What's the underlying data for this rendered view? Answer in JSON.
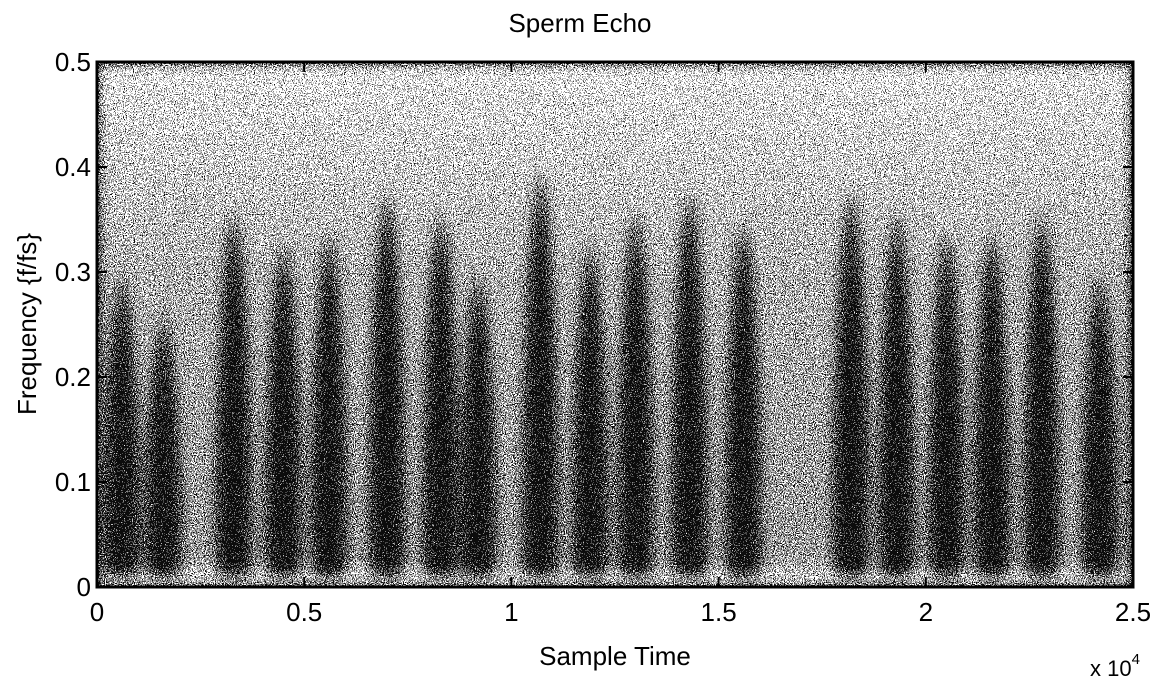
{
  "chart_data": {
    "type": "spectrogram",
    "title": "Sperm Echo",
    "x_label": "Sample Time",
    "y_label": "Frequency {f/fs}",
    "x_multiplier": {
      "base": "x 10",
      "exponent": "4"
    },
    "xlim": [
      0,
      2.5
    ],
    "xticks": [
      0,
      0.5,
      1,
      1.5,
      2,
      2.5
    ],
    "ylim": [
      0,
      0.5
    ],
    "yticks": [
      0,
      0.1,
      0.2,
      0.3,
      0.4,
      0.5
    ],
    "x": [
      0.06,
      0.16,
      0.33,
      0.45,
      0.56,
      0.7,
      0.83,
      0.92,
      1.07,
      1.19,
      1.3,
      1.43,
      1.56,
      1.82,
      1.93,
      2.05,
      2.16,
      2.28,
      2.42
    ],
    "values": [
      0.3,
      0.26,
      0.36,
      0.33,
      0.34,
      0.38,
      0.36,
      0.3,
      0.4,
      0.33,
      0.36,
      0.38,
      0.35,
      0.38,
      0.36,
      0.34,
      0.34,
      0.36,
      0.3
    ],
    "color": "#1a1a1a"
  }
}
